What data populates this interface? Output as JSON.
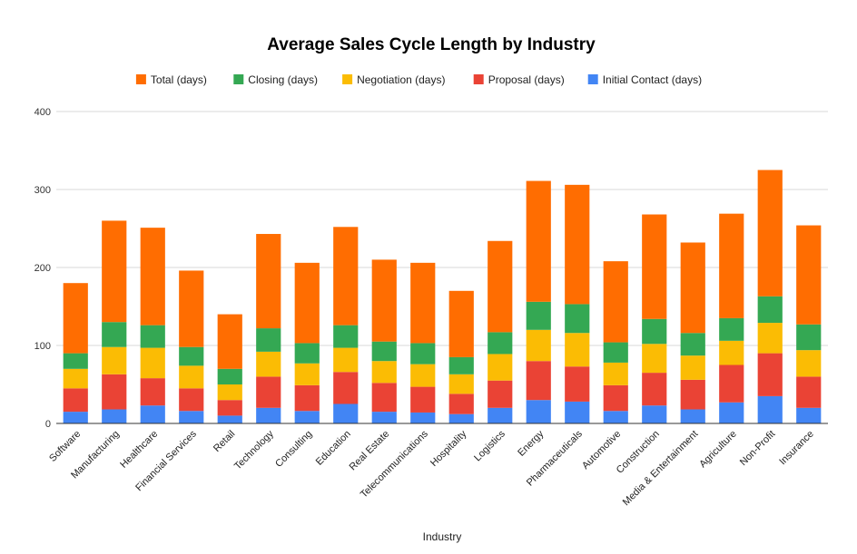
{
  "chart_data": {
    "type": "bar",
    "stacked": true,
    "title": "Average Sales Cycle Length by Industry",
    "xlabel": "Industry",
    "ylabel": "",
    "ylim": [
      0,
      400
    ],
    "yticks": [
      0,
      100,
      200,
      300,
      400
    ],
    "grid": true,
    "legend_position": "top",
    "categories": [
      "Software",
      "Manufacturing",
      "Healthcare",
      "Financial Services",
      "Retail",
      "Technology",
      "Consulting",
      "Education",
      "Real Estate",
      "Telecommunications",
      "Hospitality",
      "Logistics",
      "Energy",
      "Pharmaceuticals",
      "Automotive",
      "Construction",
      "Media & Entertainment",
      "Agriculture",
      "Non-Profit",
      "Insurance"
    ],
    "series": [
      {
        "name": "Initial Contact (days)",
        "color": "#4285f4",
        "values": [
          15,
          18,
          23,
          16,
          10,
          20,
          16,
          25,
          15,
          14,
          12,
          20,
          30,
          28,
          16,
          23,
          18,
          27,
          35,
          20
        ]
      },
      {
        "name": "Proposal (days)",
        "color": "#ea4335",
        "values": [
          30,
          45,
          35,
          29,
          20,
          40,
          33,
          41,
          37,
          33,
          26,
          35,
          50,
          45,
          33,
          42,
          38,
          48,
          55,
          40
        ]
      },
      {
        "name": "Negotiation (days)",
        "color": "#fbbc04",
        "values": [
          25,
          35,
          39,
          29,
          20,
          32,
          28,
          31,
          28,
          29,
          25,
          34,
          40,
          43,
          29,
          37,
          31,
          31,
          39,
          34
        ]
      },
      {
        "name": "Closing (days)",
        "color": "#34a853",
        "values": [
          20,
          32,
          29,
          24,
          20,
          30,
          26,
          29,
          25,
          27,
          22,
          28,
          36,
          37,
          26,
          32,
          29,
          29,
          34,
          33
        ]
      },
      {
        "name": "Total (days)",
        "color": "#ff6d01",
        "values": [
          90,
          130,
          125,
          98,
          70,
          121,
          103,
          126,
          105,
          103,
          85,
          117,
          155,
          153,
          104,
          134,
          116,
          134,
          162,
          127
        ]
      }
    ],
    "legend_order": [
      "Total (days)",
      "Closing (days)",
      "Negotiation (days)",
      "Proposal (days)",
      "Initial Contact (days)"
    ]
  }
}
